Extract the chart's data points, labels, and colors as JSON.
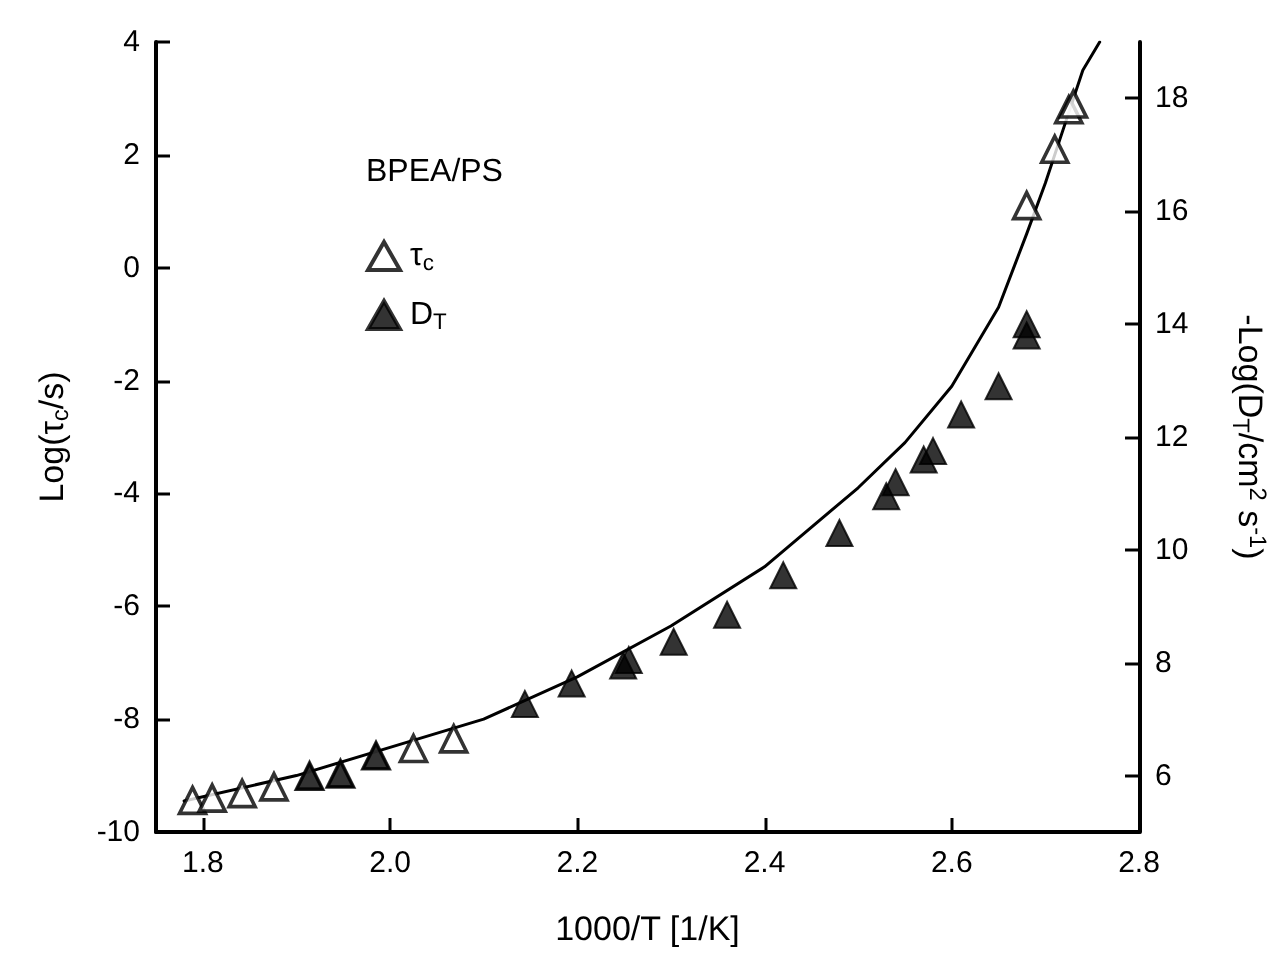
{
  "chart_data": {
    "type": "scatter",
    "xlabel": "1000/T [1/K]",
    "ylabel": "Log(τ$_{c}$/s)",
    "y2label": "-Log(D$_{T}$/cm$^{2}$ s$^{-1}$)",
    "legend_title": "BPEA/PS",
    "legend": "top left",
    "grid": false,
    "marker": "triangle",
    "xlim": [
      1.75,
      2.8
    ],
    "xticks": [
      1.8,
      {
        "value": 2,
        "label": "2.0"
      },
      2.2,
      2.4,
      2.6,
      2.8
    ],
    "ylim": [
      -10,
      4
    ],
    "yticks": [
      -10,
      -8,
      -6,
      -4,
      -2,
      0,
      2,
      4
    ],
    "y2lim": [
      5,
      19
    ],
    "y2ticks": [
      6,
      8,
      10,
      12,
      14,
      16,
      18
    ],
    "series": [
      {
        "name": "τ$_{c}$",
        "color": "#000000",
        "x": [
          1.789,
          1.81,
          1.842,
          1.876,
          1.914,
          1.947,
          1.985,
          2.025,
          2.068,
          2.68,
          2.71,
          2.725,
          2.73
        ],
        "values": [
          -9.44,
          -9.4,
          -9.32,
          -9.2,
          -9.01,
          -8.97,
          -8.65,
          -8.52,
          -8.35,
          1.1,
          2.1,
          2.8,
          2.9
        ]
      },
      {
        "name": "D$_{T}$",
        "color": "#000000",
        "axis": "y2",
        "x": [
          1.914,
          1.947,
          1.985,
          2.144,
          2.194,
          2.249,
          2.255,
          2.303,
          2.36,
          2.42,
          2.48,
          2.53,
          2.54,
          2.57,
          2.58,
          2.61,
          2.65,
          2.68,
          2.68
        ],
        "values": [
          5.99,
          6.03,
          6.35,
          7.27,
          7.63,
          7.95,
          8.05,
          8.37,
          8.85,
          9.55,
          10.3,
          10.95,
          11.2,
          11.6,
          11.75,
          12.4,
          12.9,
          13.8,
          14.0
        ]
      },
      {
        "type": "line",
        "color": "#000000",
        "marker": "none",
        "x": [
          1.78,
          1.9,
          2.0,
          2.1,
          2.2,
          2.3,
          2.4,
          2.5,
          2.55,
          2.6,
          2.65,
          2.68,
          2.7,
          2.72,
          2.74,
          2.758
        ],
        "values": [
          -9.45,
          -9.0,
          -8.5,
          -8.0,
          -7.25,
          -6.35,
          -5.3,
          -3.9,
          -3.1,
          -2.1,
          -0.7,
          0.6,
          1.5,
          2.5,
          3.5,
          4.0
        ]
      }
    ]
  }
}
